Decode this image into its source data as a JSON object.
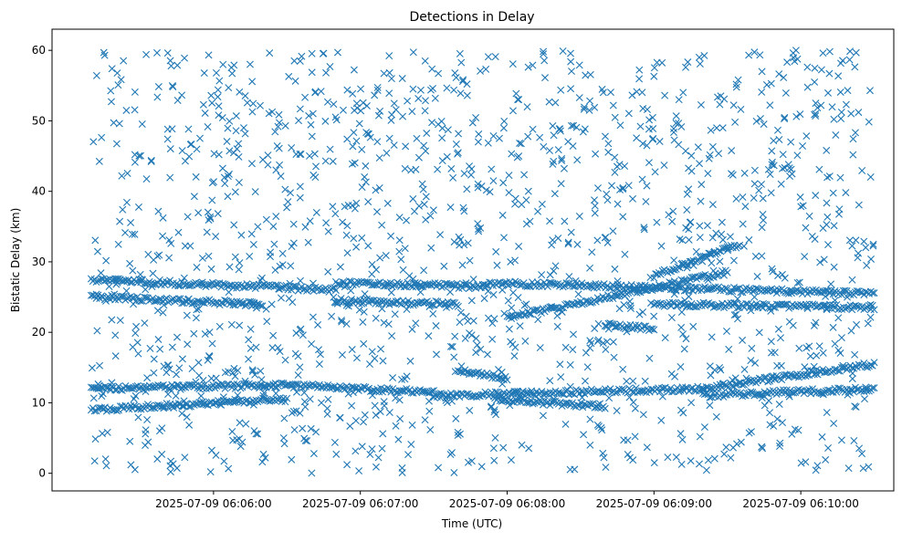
{
  "chart_data": {
    "type": "scatter",
    "title": "Detections in Delay",
    "xlabel": "Time (UTC)",
    "ylabel": "Bistatic Delay (km)",
    "marker": "x",
    "color": "#1f77b4",
    "xlim": [
      "2025-07-09T06:04:54",
      "2025-07-09T06:10:38"
    ],
    "ylim": [
      -2.5,
      63
    ],
    "xticks": [
      {
        "t": "2025-07-09T06:06:00",
        "label": "2025-07-09 06:06:00"
      },
      {
        "t": "2025-07-09T06:07:00",
        "label": "2025-07-09 06:07:00"
      },
      {
        "t": "2025-07-09T06:08:00",
        "label": "2025-07-09 06:08:00"
      },
      {
        "t": "2025-07-09T06:09:00",
        "label": "2025-07-09 06:09:00"
      },
      {
        "t": "2025-07-09T06:10:00",
        "label": "2025-07-09 06:10:00"
      }
    ],
    "yticks": [
      0,
      10,
      20,
      30,
      40,
      50,
      60
    ],
    "tracks": [
      {
        "start": "2025-07-09T06:05:10",
        "end": "2025-07-09T06:06:50",
        "delay_start": 27.5,
        "delay_end": 26.0
      },
      {
        "start": "2025-07-09T06:06:50",
        "end": "2025-07-09T06:07:50",
        "delay_start": 27.0,
        "delay_end": 26.5
      },
      {
        "start": "2025-07-09T06:07:50",
        "end": "2025-07-09T06:10:30",
        "delay_start": 27.0,
        "delay_end": 25.5
      },
      {
        "start": "2025-07-09T06:05:10",
        "end": "2025-07-09T06:06:20",
        "delay_start": 25.0,
        "delay_end": 24.0
      },
      {
        "start": "2025-07-09T06:06:50",
        "end": "2025-07-09T06:07:40",
        "delay_start": 24.5,
        "delay_end": 24.0
      },
      {
        "start": "2025-07-09T06:08:00",
        "end": "2025-07-09T06:09:30",
        "delay_start": 22.0,
        "delay_end": 28.5
      },
      {
        "start": "2025-07-09T06:09:00",
        "end": "2025-07-09T06:09:35",
        "delay_start": 28.0,
        "delay_end": 32.5
      },
      {
        "start": "2025-07-09T06:08:40",
        "end": "2025-07-09T06:09:00",
        "delay_start": 21.0,
        "delay_end": 20.5
      },
      {
        "start": "2025-07-09T06:09:00",
        "end": "2025-07-09T06:10:30",
        "delay_start": 24.0,
        "delay_end": 23.5
      },
      {
        "start": "2025-07-09T06:05:10",
        "end": "2025-07-09T06:06:30",
        "delay_start": 12.0,
        "delay_end": 12.5
      },
      {
        "start": "2025-07-09T06:06:30",
        "end": "2025-07-09T06:07:30",
        "delay_start": 12.5,
        "delay_end": 11.5
      },
      {
        "start": "2025-07-09T06:07:30",
        "end": "2025-07-09T06:09:20",
        "delay_start": 11.0,
        "delay_end": 12.0
      },
      {
        "start": "2025-07-09T06:09:20",
        "end": "2025-07-09T06:10:30",
        "delay_start": 12.0,
        "delay_end": 15.5
      },
      {
        "start": "2025-07-09T06:05:10",
        "end": "2025-07-09T06:06:30",
        "delay_start": 9.0,
        "delay_end": 10.5
      },
      {
        "start": "2025-07-09T06:07:55",
        "end": "2025-07-09T06:08:40",
        "delay_start": 10.5,
        "delay_end": 9.5
      },
      {
        "start": "2025-07-09T06:09:20",
        "end": "2025-07-09T06:10:30",
        "delay_start": 11.0,
        "delay_end": 12.0
      },
      {
        "start": "2025-07-09T06:07:40",
        "end": "2025-07-09T06:08:00",
        "delay_start": 14.5,
        "delay_end": 13.5
      }
    ]
  }
}
